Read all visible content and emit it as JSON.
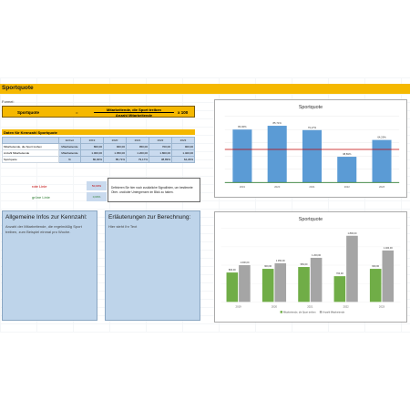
{
  "sheet": {
    "title": "Sportquote",
    "formel_label": "Formel:",
    "formula": {
      "lhs": "Sportquote",
      "eq": "=",
      "numerator": "Mitarbeitende, die Sport treiben",
      "denominator": "Anzahl Mitarbeitende",
      "multiplier": "x 100"
    },
    "data_header": "Daten für Kennzahl Sportquote",
    "table": {
      "headers": [
        "",
        "Einheit",
        "2019",
        "2020",
        "2021",
        "2022",
        "2023"
      ],
      "rows": [
        [
          "Mitarbeitende, die Sport treiben",
          "Mitarbeitende",
          "800,00",
          "900,00",
          "950,00",
          "700,00",
          "900,00"
        ],
        [
          "Anzahl Mitarbeitende",
          "Mitarbeitende",
          "1.000,00",
          "1.050,00",
          "1.200,00",
          "1.800,00",
          "1.400,00"
        ],
        [
          "Sportquote",
          "%",
          "80,00%",
          "85,71%",
          "79,17%",
          "38,89%",
          "64,29%"
        ]
      ]
    },
    "rote_linie": {
      "label": "rote Linie",
      "value": "50,00%",
      "color": "#c00000"
    },
    "gruene_linie": {
      "label": "grüne Linie",
      "value": "0,00%",
      "color": "#2e7d32"
    },
    "define_text": "Definieren Sie hier noch zusätzliche Signallinien, um bestimmte Ober- und/oder Untergrenzen im Blick zu haben.",
    "info_left": {
      "heading": "Allgemeine Infos zur Kennzahl:",
      "body": "Anzahl der Mitarbeitende, die regelmäßig Sport treiben, zum Beispiel einmal pro Woche."
    },
    "info_right": {
      "heading": "Erläuterungen zur Berechnung:",
      "body": "Hier steht Ihr Text"
    }
  },
  "chart_data": [
    {
      "type": "bar",
      "title": "Sportquote",
      "categories": [
        "2019",
        "2020",
        "2021",
        "2022",
        "2023"
      ],
      "values": [
        80.0,
        85.71,
        79.17,
        38.89,
        64.29
      ],
      "data_labels": [
        "80,00%",
        "85,71%",
        "79,17%",
        "38,89%",
        "64,29%"
      ],
      "reference_lines": [
        {
          "value": 50.0,
          "color": "#c00000"
        },
        {
          "value": 0.0,
          "color": "#2e7d32"
        }
      ],
      "ylim": [
        0,
        100
      ],
      "bar_color": "#5b9bd5"
    },
    {
      "type": "bar",
      "title": "Sportquote",
      "categories": [
        "2019",
        "2020",
        "2021",
        "2022",
        "2023"
      ],
      "series": [
        {
          "name": "Mitarbeitende, die Sport treiben",
          "values": [
            800,
            900,
            950,
            700,
            900
          ],
          "labels": [
            "800,00",
            "900,00",
            "950,00",
            "700,00",
            "900,00"
          ],
          "color": "#70ad47"
        },
        {
          "name": "Anzahl Mitarbeitende",
          "values": [
            1000,
            1050,
            1200,
            1800,
            1400
          ],
          "labels": [
            "1.000,00",
            "1.050,00",
            "1.200,00",
            "1.800,00",
            "1.400,00"
          ],
          "color": "#a5a5a5"
        }
      ],
      "ylim": [
        0,
        2000
      ],
      "legend": "bottom"
    }
  ]
}
